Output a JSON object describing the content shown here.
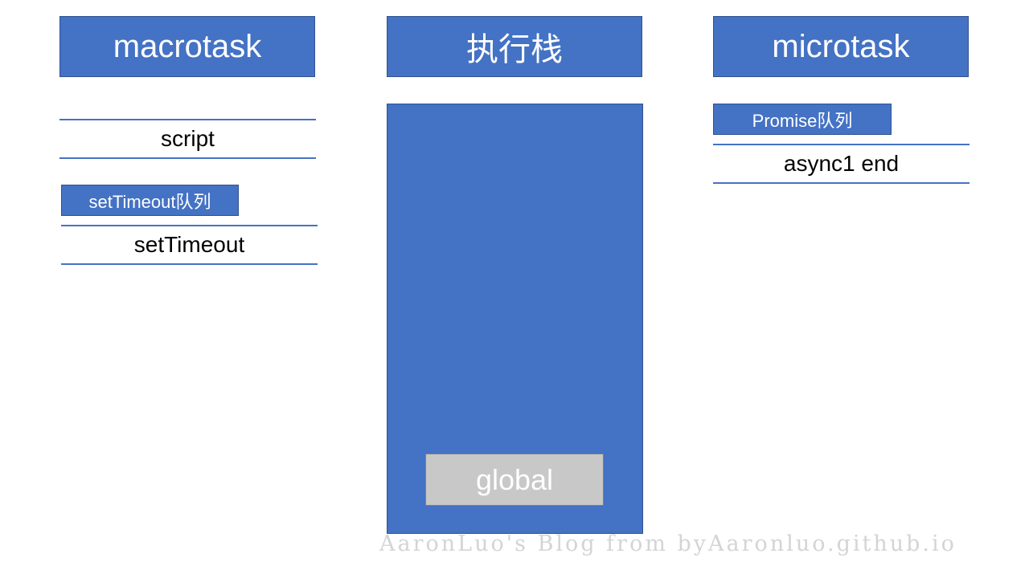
{
  "headers": {
    "macrotask": "macrotask",
    "stack": "执行栈",
    "microtask": "microtask"
  },
  "macrotask": {
    "current_item": "script",
    "settimeout_queue_label": "setTimeout队列",
    "settimeout_queue_items": [
      "setTimeout"
    ]
  },
  "stack": {
    "frames": [
      "global"
    ]
  },
  "microtask": {
    "promise_queue_label": "Promise队列",
    "promise_queue_items": [
      "async1 end"
    ]
  },
  "watermark": "AaronLuo's Blog from byAaronluo.github.io",
  "colors": {
    "box_fill": "#4472c4",
    "box_border": "#2f528f",
    "frame_fill": "#c8c8c8",
    "watermark": "#d4d4d4"
  }
}
